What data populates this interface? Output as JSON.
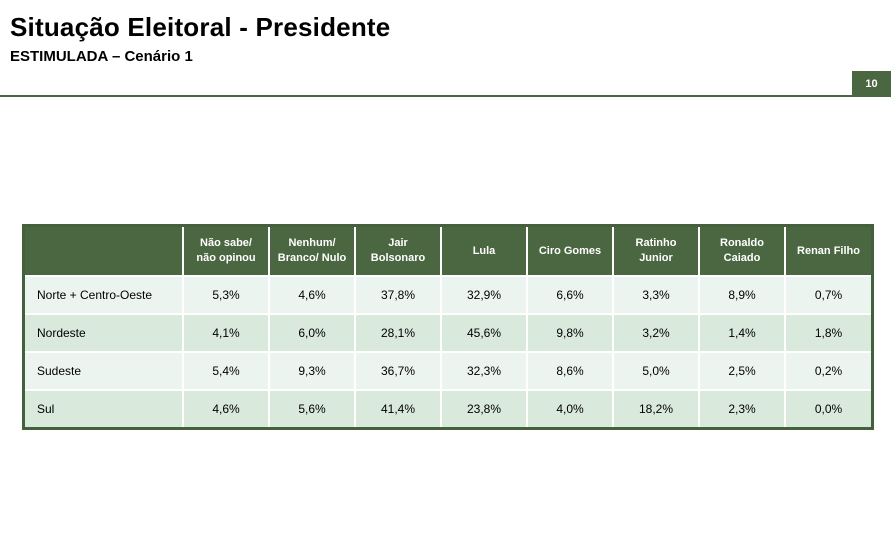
{
  "header": {
    "title": "Situação Eleitoral - Presidente",
    "subtitle": "ESTIMULADA – Cenário 1",
    "page_number": "10"
  },
  "colors": {
    "accent_green": "#4a6741",
    "row_light": "#ecf4ef",
    "row_alt": "#d9e9dc",
    "header_text": "#ffffff"
  },
  "table": {
    "columns": [
      "",
      "Não sabe/\nnão opinou",
      "Nenhum/\nBranco/ Nulo",
      "Jair\nBolsonaro",
      "Lula",
      "Ciro Gomes",
      "Ratinho\nJunior",
      "Ronaldo\nCaiado",
      "Renan Filho"
    ],
    "rows": [
      {
        "label": "Norte + Centro-Oeste",
        "values": [
          "5,3%",
          "4,6%",
          "37,8%",
          "32,9%",
          "6,6%",
          "3,3%",
          "8,9%",
          "0,7%"
        ]
      },
      {
        "label": "Nordeste",
        "values": [
          "4,1%",
          "6,0%",
          "28,1%",
          "45,6%",
          "9,8%",
          "3,2%",
          "1,4%",
          "1,8%"
        ]
      },
      {
        "label": "Sudeste",
        "values": [
          "5,4%",
          "9,3%",
          "36,7%",
          "32,3%",
          "8,6%",
          "5,0%",
          "2,5%",
          "0,2%"
        ]
      },
      {
        "label": "Sul",
        "values": [
          "4,6%",
          "5,6%",
          "41,4%",
          "23,8%",
          "4,0%",
          "18,2%",
          "2,3%",
          "0,0%"
        ]
      }
    ]
  }
}
